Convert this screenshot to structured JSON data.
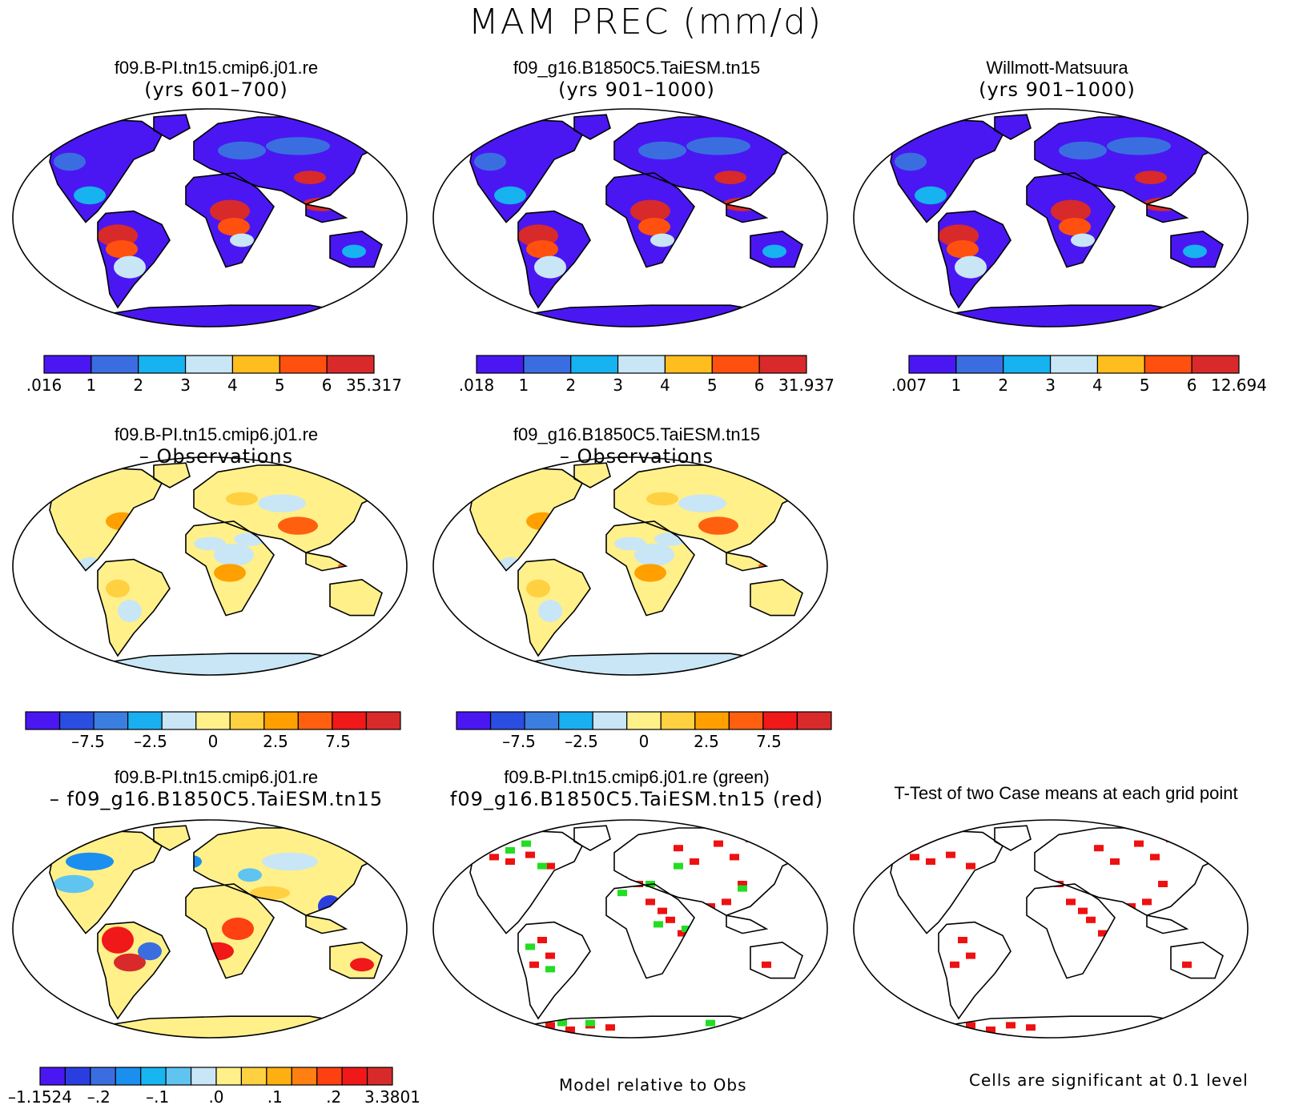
{
  "title": "MAM PREC (mm/d)",
  "colors": {
    "seq": [
      "#4a17f3",
      "#3a6ee0",
      "#17b2f0",
      "#c8e6f5",
      "#ffbe1e",
      "#ff5010",
      "#d82a2a"
    ],
    "diff": [
      "#4a17f3",
      "#2a4ee0",
      "#3a7ee0",
      "#1aaff0",
      "#c8e6f5",
      "#fff08a",
      "#ffd040",
      "#ffa000",
      "#ff6010",
      "#f01818",
      "#d82a2a"
    ],
    "diff2": [
      "#4a17f3",
      "#2a3ee0",
      "#3a6ee0",
      "#1a8ff0",
      "#17b6f0",
      "#60c4f0",
      "#c8e6f5",
      "#fff08a",
      "#ffd040",
      "#ffb010",
      "#ff8010",
      "#ff4010",
      "#f01818",
      "#d82a2a"
    ]
  },
  "panels": [
    {
      "line1": "f09.B-PI.tn15.cmip6.j01.re",
      "line2": "(yrs 601–700)",
      "fill": "seq",
      "marks": ""
    },
    {
      "line1": "f09_g16.B1850C5.TaiESM.tn15",
      "line2": "(yrs 901–1000)",
      "fill": "seq",
      "marks": ""
    },
    {
      "line1": "Willmott-Matsuura",
      "line2": "(yrs 901–1000)",
      "fill": "seq",
      "marks": ""
    },
    {
      "line1": "f09.B-PI.tn15.cmip6.j01.re",
      "line2": "– Observations",
      "fill": "diff",
      "marks": ""
    },
    {
      "line1": "f09_g16.B1850C5.TaiESM.tn15",
      "line2": "– Observations",
      "fill": "diff",
      "marks": ""
    },
    {
      "line1": "f09.B-PI.tn15.cmip6.j01.re",
      "line2": "– f09_g16.B1850C5.TaiESM.tn15",
      "fill": "diff2",
      "marks": ""
    },
    {
      "line1": "f09.B-PI.tn15.cmip6.j01.re (green)",
      "line2": "f09_g16.B1850C5.TaiESM.tn15 (red)",
      "fill": "white",
      "marks": "rg"
    },
    {
      "line1": "T-Test of two Case means at each grid point",
      "line2": "",
      "fill": "white",
      "marks": "r"
    }
  ],
  "colorbars": [
    {
      "palette": "seq",
      "labels": [
        ".016",
        "1",
        "2",
        "3",
        "4",
        "5",
        "6",
        "35.317"
      ]
    },
    {
      "palette": "seq",
      "labels": [
        ".018",
        "1",
        "2",
        "3",
        "4",
        "5",
        "6",
        "31.937"
      ]
    },
    {
      "palette": "seq",
      "labels": [
        ".007",
        "1",
        "2",
        "3",
        "4",
        "5",
        "6",
        "12.694"
      ]
    },
    {
      "palette": "diff",
      "labels": [
        "",
        "–7.5",
        "–2.5",
        "0",
        "2.5",
        "7.5",
        ""
      ]
    },
    {
      "palette": "diff",
      "labels": [
        "",
        "–7.5",
        "–2.5",
        "0",
        "2.5",
        "7.5",
        ""
      ]
    },
    {
      "palette": "diff2",
      "labels": [
        "–1.1524",
        "–.2",
        "–.1",
        ".0",
        ".1",
        ".2",
        "3.3801"
      ]
    }
  ],
  "notes": {
    "model_rel": "Model relative to Obs",
    "significance": "Cells are significant at 0.1 level"
  }
}
